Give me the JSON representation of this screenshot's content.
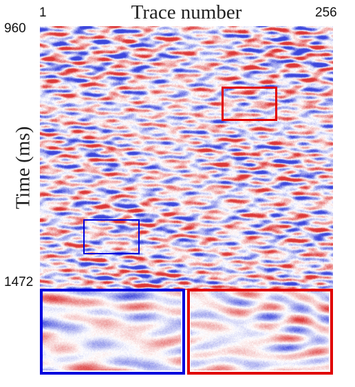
{
  "figure": {
    "title": "Trace number",
    "x_tick_start": "1",
    "x_tick_end": "256",
    "y_label": "Time (ms)",
    "y_tick_top": "960",
    "y_tick_bottom": "1472"
  },
  "colors": {
    "positive": "#e03c3c",
    "negative": "#3c46e0",
    "background": "#ffffff",
    "highlight_red": "#e00000",
    "highlight_blue": "#0000dd"
  },
  "icons": [
    "seismic-section-image",
    "zoom-inset-blue",
    "zoom-inset-red"
  ]
}
